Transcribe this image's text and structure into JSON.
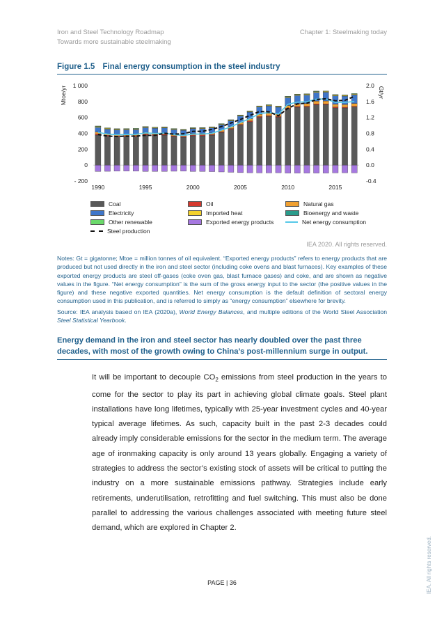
{
  "header": {
    "left_line1": "Iron and Steel Technology Roadmap",
    "left_line2": "Towards more sustainable steelmaking",
    "right": "Chapter 1: Steelmaking today"
  },
  "figure": {
    "number": "Figure 1.5",
    "title": "Final energy consumption in the steel industry",
    "rights": "IEA 2020. All rights reserved."
  },
  "chart_data": {
    "type": "bar",
    "stacked": true,
    "ylabel": "Mtoe/yr",
    "y2label": "Gt/yr",
    "ylim": [
      -200,
      1000
    ],
    "yticks": [
      "1 000",
      "800",
      "600",
      "400",
      "200",
      "0",
      "- 200"
    ],
    "y2lim": [
      -0.4,
      2.0
    ],
    "y2ticks": [
      "2.0",
      "1.6",
      "1.2",
      "0.8",
      "0.4",
      "0.0",
      "-0.4"
    ],
    "xtick_labels": [
      "1990",
      "1995",
      "2000",
      "2005",
      "2010",
      "2015"
    ],
    "categories": [
      "1990",
      "1991",
      "1992",
      "1993",
      "1994",
      "1995",
      "1996",
      "1997",
      "1998",
      "1999",
      "2000",
      "2001",
      "2002",
      "2003",
      "2004",
      "2005",
      "2006",
      "2007",
      "2008",
      "2009",
      "2010",
      "2011",
      "2012",
      "2013",
      "2014",
      "2015",
      "2016",
      "2017"
    ],
    "series": [
      {
        "name": "Coal",
        "color": "#595959",
        "values": [
          378,
          362,
          355,
          357,
          358,
          378,
          372,
          375,
          358,
          350,
          367,
          368,
          375,
          410,
          450,
          502,
          545,
          600,
          612,
          602,
          706,
          728,
          730,
          758,
          760,
          720,
          718,
          730
        ]
      },
      {
        "name": "Oil",
        "color": "#d63a2f",
        "values": [
          15,
          14,
          13,
          13,
          13,
          13,
          12,
          12,
          11,
          11,
          11,
          11,
          11,
          11,
          11,
          11,
          11,
          11,
          11,
          10,
          11,
          11,
          11,
          11,
          11,
          10,
          10,
          10
        ]
      },
      {
        "name": "Natural gas",
        "color": "#f0a030",
        "values": [
          22,
          20,
          19,
          19,
          19,
          20,
          20,
          20,
          19,
          19,
          20,
          20,
          21,
          22,
          24,
          26,
          27,
          29,
          30,
          29,
          33,
          34,
          35,
          36,
          36,
          35,
          35,
          36
        ]
      },
      {
        "name": "Electricity",
        "color": "#3f76c9",
        "values": [
          60,
          57,
          56,
          56,
          57,
          60,
          60,
          60,
          58,
          57,
          60,
          60,
          62,
          66,
          72,
          78,
          84,
          90,
          92,
          88,
          100,
          104,
          105,
          110,
          110,
          106,
          105,
          108
        ]
      },
      {
        "name": "Imported heat",
        "color": "#f3d12c",
        "values": [
          12,
          11,
          10,
          10,
          10,
          10,
          9,
          9,
          9,
          8,
          8,
          8,
          8,
          8,
          9,
          9,
          9,
          10,
          10,
          10,
          11,
          11,
          11,
          11,
          11,
          11,
          11,
          11
        ]
      },
      {
        "name": "Bioenergy and waste",
        "color": "#2a9c8c",
        "values": [
          4,
          4,
          4,
          4,
          4,
          4,
          4,
          4,
          4,
          4,
          4,
          4,
          4,
          4,
          4,
          4,
          4,
          4,
          4,
          4,
          4,
          4,
          4,
          4,
          4,
          4,
          4,
          4
        ]
      },
      {
        "name": "Other renewable",
        "color": "#6bd96b",
        "values": [
          1,
          1,
          1,
          1,
          1,
          1,
          1,
          1,
          1,
          1,
          1,
          1,
          1,
          1,
          1,
          1,
          1,
          1,
          1,
          1,
          1,
          1,
          1,
          1,
          1,
          1,
          1,
          1
        ]
      },
      {
        "name": "Exported energy products",
        "color": "#a678e0",
        "values": [
          -80,
          -78,
          -76,
          -75,
          -76,
          -80,
          -79,
          -79,
          -77,
          -76,
          -80,
          -80,
          -82,
          -86,
          -90,
          -94,
          -96,
          -98,
          -98,
          -96,
          -100,
          -100,
          -100,
          -100,
          -100,
          -98,
          -96,
          -98
        ]
      }
    ],
    "lines": [
      {
        "name": "Net energy consumption",
        "color": "#55c8e8",
        "values": [
          412,
          391,
          382,
          385,
          386,
          406,
          399,
          402,
          383,
          374,
          391,
          392,
          400,
          441,
          481,
          537,
          585,
          647,
          662,
          643,
          766,
          793,
          797,
          831,
          833,
          789,
          788,
          802
        ]
      },
      {
        "name": "Steel production",
        "axis": "right",
        "color": "#111111",
        "values": [
          0.77,
          0.73,
          0.72,
          0.73,
          0.73,
          0.75,
          0.75,
          0.8,
          0.78,
          0.79,
          0.85,
          0.85,
          0.9,
          0.97,
          1.06,
          1.15,
          1.25,
          1.35,
          1.34,
          1.24,
          1.43,
          1.54,
          1.56,
          1.65,
          1.67,
          1.62,
          1.63,
          1.73
        ]
      }
    ]
  },
  "legend_items": [
    {
      "label": "Coal",
      "kind": "box",
      "color": "#595959"
    },
    {
      "label": "Oil",
      "kind": "box",
      "color": "#d63a2f"
    },
    {
      "label": "Natural gas",
      "kind": "box",
      "color": "#f0a030"
    },
    {
      "label": "Electricity",
      "kind": "box",
      "color": "#3f76c9"
    },
    {
      "label": "Imported heat",
      "kind": "box",
      "color": "#f3d12c"
    },
    {
      "label": "Bioenergy and waste",
      "kind": "box",
      "color": "#2a9c8c"
    },
    {
      "label": "Other renewable",
      "kind": "box",
      "color": "#6bd96b"
    },
    {
      "label": "Exported energy products",
      "kind": "box",
      "color": "#a678e0"
    },
    {
      "label": "Net energy consumption",
      "kind": "line",
      "color": "#55c8e8"
    },
    {
      "label": "Steel production",
      "kind": "dash",
      "color": "#111111"
    }
  ],
  "notes": {
    "notes_text": "Notes: Gt = gigatonne; Mtoe = million tonnes of oil equivalent. “Exported energy products” refers to energy products that are produced but not used directly in the iron and steel sector (including coke ovens and blast furnaces). Key examples of these exported energy products are steel off-gases (coke oven gas, blast furnace gases) and coke, and are shown as negative values in the figure. “Net energy consumption” is the sum of the gross energy input to the sector (the positive values in the figure) and these negative exported quantities. Net energy consumption is the default definition of sectoral energy consumption used in this publication, and is referred to simply as “energy consumption” elsewhere for brevity.",
    "source_pre": "Source: IEA analysis based on IEA (2020a), ",
    "source_em1": "World Energy Balances",
    "source_mid": ", and multiple editions of the World Steel Association ",
    "source_em2": "Steel Statistical Yearbook",
    "source_end": "."
  },
  "key_message": "Energy demand in the iron and steel sector has nearly doubled over the past three decades, with most of the growth owing to China’s post-millennium surge in output.",
  "body": {
    "part1": "It will be important to decouple CO",
    "sub": "2",
    "part2": " emissions from steel production in the years to come for the sector to play its part in achieving global climate goals. Steel plant installations have long lifetimes, typically with 25-year investment cycles and 40-year typical average lifetimes. As such, capacity built in the past 2-3 decades could already imply considerable emissions for the sector in the medium term. The average age of ironmaking capacity is only around 13 years globally. Engaging a variety of strategies to address the sector’s existing stock of assets will be critical to putting the industry on a more sustainable emissions pathway. Strategies include early retirements, underutilisation, retrofitting and fuel switching. This must also be done parallel to addressing the various challenges associated with meeting future steel demand, which are explored in Chapter 2."
  },
  "footer": {
    "page_label": "PAGE | 36",
    "vertical_note": "IEA. All rights reserved."
  }
}
